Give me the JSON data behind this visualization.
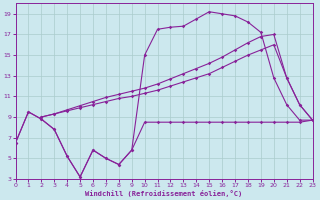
{
  "background_color": "#cce8ee",
  "line_color": "#882299",
  "grid_color": "#aacccc",
  "xlabel": "Windchill (Refroidissement éolien,°C)",
  "xlim": [
    0,
    23
  ],
  "ylim": [
    3,
    20
  ],
  "yticks": [
    3,
    5,
    7,
    9,
    11,
    13,
    15,
    17,
    19
  ],
  "xticks": [
    0,
    1,
    2,
    3,
    4,
    5,
    6,
    7,
    8,
    9,
    10,
    11,
    12,
    13,
    14,
    15,
    16,
    17,
    18,
    19,
    20,
    21,
    22,
    23
  ],
  "series": [
    {
      "x": [
        0,
        1,
        2,
        3,
        4,
        5,
        6,
        7,
        8,
        9,
        10,
        11,
        12,
        13,
        14,
        15,
        16,
        17,
        18,
        19,
        20,
        21,
        22,
        23
      ],
      "y": [
        6.5,
        9.5,
        8.8,
        7.8,
        5.2,
        3.2,
        5.8,
        5.0,
        4.4,
        5.8,
        8.5,
        8.5,
        8.5,
        8.5,
        8.5,
        8.5,
        8.5,
        8.5,
        8.5,
        8.5,
        8.5,
        8.5,
        8.5,
        8.7
      ]
    },
    {
      "x": [
        0,
        1,
        2,
        3,
        4,
        5,
        6,
        7,
        8,
        9,
        10,
        11,
        12,
        13,
        14,
        15,
        16,
        17,
        18,
        19,
        20,
        21,
        22,
        23
      ],
      "y": [
        6.5,
        9.5,
        8.8,
        7.8,
        5.2,
        3.2,
        5.8,
        5.0,
        4.4,
        5.8,
        15.0,
        17.5,
        17.7,
        17.8,
        18.5,
        19.2,
        19.0,
        18.8,
        18.2,
        17.2,
        12.8,
        10.2,
        8.7,
        8.7
      ]
    },
    {
      "x": [
        2,
        3,
        4,
        5,
        6,
        7,
        8,
        9,
        10,
        11,
        12,
        13,
        14,
        15,
        16,
        17,
        18,
        19,
        20,
        21,
        22,
        23
      ],
      "y": [
        9.0,
        9.3,
        9.6,
        9.9,
        10.2,
        10.5,
        10.8,
        11.0,
        11.3,
        11.6,
        12.0,
        12.4,
        12.8,
        13.2,
        13.8,
        14.4,
        15.0,
        15.5,
        16.0,
        12.8,
        10.2,
        8.7
      ]
    },
    {
      "x": [
        2,
        3,
        4,
        5,
        6,
        7,
        8,
        9,
        10,
        11,
        12,
        13,
        14,
        15,
        16,
        17,
        18,
        19,
        20,
        21,
        22,
        23
      ],
      "y": [
        9.0,
        9.3,
        9.7,
        10.1,
        10.5,
        10.9,
        11.2,
        11.5,
        11.8,
        12.2,
        12.7,
        13.2,
        13.7,
        14.2,
        14.8,
        15.5,
        16.2,
        16.8,
        17.0,
        12.8,
        10.2,
        8.7
      ]
    }
  ]
}
